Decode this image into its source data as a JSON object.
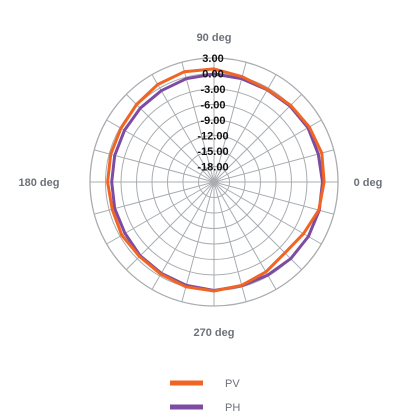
{
  "chart_data": {
    "type": "polar-line",
    "radial_ticks": [
      "3.00",
      "0.00",
      "-3.00",
      "-6.00",
      "-9.00",
      "-12.00",
      "-15.00",
      "-18.00"
    ],
    "radial_range": [
      -21,
      3
    ],
    "angle_labels": [
      {
        "angle": 90,
        "text": "90 deg"
      },
      {
        "angle": 180,
        "text": "180 deg"
      },
      {
        "angle": 0,
        "text": "0 deg"
      },
      {
        "angle": 270,
        "text": "270 deg"
      }
    ],
    "grid": true,
    "spokes_deg": 15,
    "legend_position": "bottom-center",
    "series": [
      {
        "name": "PV",
        "color": "#f06424",
        "angles": [
          0,
          15,
          30,
          45,
          60,
          75,
          90,
          105,
          120,
          135,
          150,
          165,
          180,
          195,
          210,
          225,
          240,
          255,
          270,
          285,
          300,
          315,
          330,
          345,
          360
        ],
        "values": [
          0.3,
          0.6,
          0.3,
          0.0,
          -0.3,
          0.1,
          0.9,
          1.1,
          0.8,
          0.2,
          -0.2,
          -0.3,
          -0.4,
          -0.6,
          -0.4,
          -0.6,
          -0.4,
          0.0,
          0.1,
          -0.3,
          -0.9,
          -1.6,
          -1.0,
          0.0,
          0.3
        ]
      },
      {
        "name": "PH",
        "color": "#7d4ca2",
        "angles": [
          0,
          15,
          30,
          45,
          60,
          75,
          90,
          105,
          120,
          135,
          150,
          165,
          180,
          195,
          210,
          225,
          240,
          255,
          270,
          285,
          300,
          315,
          330,
          345,
          360
        ],
        "values": [
          0.0,
          -0.1,
          0.0,
          -0.2,
          -0.4,
          -0.3,
          -0.1,
          -0.3,
          -0.6,
          -0.8,
          -1.0,
          -1.1,
          -1.2,
          -1.1,
          -1.1,
          -0.8,
          -0.6,
          -0.3,
          0.0,
          -0.2,
          -0.2,
          0.0,
          0.1,
          0.1,
          0.0
        ]
      }
    ]
  }
}
